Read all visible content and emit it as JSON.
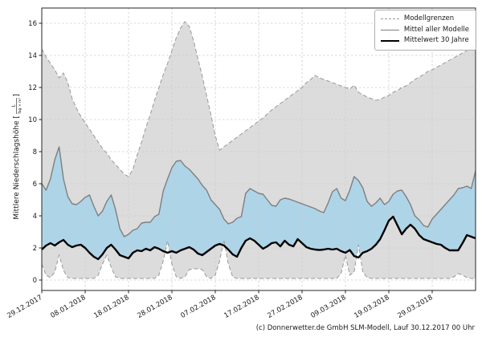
{
  "figure": {
    "footer": "(c) Donnerwetter.de GmbH SLM-Modell, Lauf 30.12.2017 00 Uhr"
  },
  "chart_data": {
    "type": "line",
    "title": "",
    "ylabel_prefix": "Mittlere Niederschlagshöhe [",
    "ylabel_unit_numerator": "L",
    "ylabel_unit_denominator": "Tag × m²",
    "ylabel_close_bracket": "]",
    "grid": true,
    "legend_position": "upper right",
    "ylim": [
      -0.7,
      16.95
    ],
    "xlim_days": [
      0,
      100
    ],
    "y_ticks": [
      0,
      2,
      4,
      6,
      8,
      10,
      12,
      14,
      16
    ],
    "x_tick_days": [
      0,
      10,
      20,
      30,
      40,
      50,
      60,
      70,
      80,
      90
    ],
    "x_tick_labels": [
      "29.12.2017",
      "08.01.2018",
      "18.01.2018",
      "28.01.2018",
      "07.02.2018",
      "17.02.2018",
      "27.02.2018",
      "09.03.2018",
      "19.03.2018",
      "29.03.2018"
    ],
    "legend": {
      "entries": [
        {
          "label": "Modellgrenzen",
          "style": "dashed-gray"
        },
        {
          "label": "Mittel aller Modelle",
          "style": "solid-gray"
        },
        {
          "label": "Mittelwert 30 Jahre",
          "style": "thick-black"
        }
      ]
    },
    "colors": {
      "band_fill": "#dcdcdc",
      "blue_fill": "#aed4e8",
      "bound_line": "#999999",
      "mean_line": "#7f7f7f",
      "mean30_line": "#000000",
      "grid": "#cccccc",
      "spine": "#262626",
      "text": "#1a1a1a"
    },
    "series": [
      {
        "name": "Modellgrenze oben",
        "style": "dashed",
        "values": [
          14.4,
          13.9,
          13.5,
          13.1,
          12.6,
          12.9,
          12.3,
          11.3,
          10.7,
          10.2,
          9.8,
          9.4,
          9.0,
          8.6,
          8.2,
          7.9,
          7.5,
          7.2,
          6.9,
          6.6,
          6.45,
          6.9,
          7.8,
          8.6,
          9.5,
          10.3,
          11.2,
          12.0,
          12.8,
          13.5,
          14.3,
          15.1,
          15.7,
          16.1,
          15.8,
          14.9,
          13.8,
          12.7,
          11.5,
          10.3,
          9.0,
          8.1,
          8.3,
          8.5,
          8.7,
          8.9,
          9.1,
          9.3,
          9.5,
          9.7,
          9.9,
          10.1,
          10.35,
          10.6,
          10.8,
          11.0,
          11.2,
          11.4,
          11.6,
          11.8,
          12.0,
          12.3,
          12.5,
          12.75,
          12.6,
          12.5,
          12.4,
          12.3,
          12.2,
          12.1,
          12.0,
          11.9,
          12.15,
          11.7,
          11.55,
          11.4,
          11.3,
          11.2,
          11.25,
          11.4,
          11.5,
          11.7,
          11.8,
          12.0,
          12.1,
          12.3,
          12.5,
          12.65,
          12.8,
          13.0,
          13.1,
          13.25,
          13.4,
          13.55,
          13.7,
          13.85,
          14.0,
          14.15,
          14.3,
          14.45,
          14.6
        ]
      },
      {
        "name": "Modellgrenze unten",
        "style": "dashed",
        "values": [
          1.0,
          0.3,
          0.15,
          0.5,
          1.55,
          0.6,
          0.15,
          0.1,
          0.1,
          0.1,
          0.1,
          0.1,
          0.1,
          0.3,
          1.0,
          1.55,
          0.8,
          0.2,
          0.1,
          0.1,
          0.1,
          0.1,
          0.1,
          0.1,
          0.1,
          0.1,
          0.1,
          0.3,
          1.2,
          2.45,
          1.0,
          0.2,
          0.1,
          0.2,
          0.65,
          0.7,
          0.7,
          0.65,
          0.2,
          0.1,
          0.3,
          1.2,
          2.5,
          1.0,
          0.2,
          0.1,
          0.1,
          0.1,
          0.1,
          0.1,
          0.1,
          0.1,
          0.1,
          0.1,
          0.1,
          0.1,
          0.1,
          0.1,
          0.1,
          0.1,
          0.1,
          0.1,
          0.1,
          0.1,
          0.1,
          0.1,
          0.1,
          0.1,
          0.1,
          0.4,
          1.55,
          0.3,
          0.5,
          2.2,
          0.5,
          0.15,
          0.1,
          0.1,
          0.1,
          0.1,
          0.1,
          0.1,
          0.1,
          0.1,
          0.1,
          0.1,
          0.1,
          0.1,
          0.1,
          0.1,
          0.1,
          0.1,
          0.1,
          0.1,
          0.1,
          0.2,
          0.4,
          0.3,
          0.15,
          0.1,
          0.1
        ]
      },
      {
        "name": "Mittel aller Modelle",
        "style": "solid-gray",
        "values": [
          6.0,
          5.6,
          6.3,
          7.5,
          8.3,
          6.3,
          5.2,
          4.75,
          4.7,
          4.9,
          5.15,
          5.3,
          4.6,
          4.0,
          4.3,
          4.9,
          5.3,
          4.4,
          3.2,
          2.7,
          2.85,
          3.1,
          3.2,
          3.55,
          3.6,
          3.6,
          3.95,
          4.1,
          5.55,
          6.3,
          7.0,
          7.4,
          7.45,
          7.1,
          6.9,
          6.6,
          6.3,
          5.9,
          5.6,
          5.0,
          4.7,
          4.4,
          3.8,
          3.5,
          3.6,
          3.85,
          3.95,
          5.4,
          5.7,
          5.55,
          5.4,
          5.35,
          5.0,
          4.65,
          4.6,
          5.0,
          5.1,
          5.05,
          4.95,
          4.85,
          4.75,
          4.65,
          4.55,
          4.45,
          4.3,
          4.2,
          4.8,
          5.5,
          5.7,
          5.1,
          4.95,
          5.6,
          6.45,
          6.2,
          5.75,
          4.9,
          4.6,
          4.8,
          5.1,
          4.7,
          4.9,
          5.35,
          5.55,
          5.6,
          5.2,
          4.7,
          4.0,
          3.75,
          3.4,
          3.3,
          3.8,
          4.1,
          4.4,
          4.7,
          5.0,
          5.3,
          5.7,
          5.75,
          5.85,
          5.7,
          6.8
        ]
      },
      {
        "name": "Mittelwert 30 Jahre",
        "style": "thick-black",
        "values": [
          1.9,
          2.15,
          2.3,
          2.15,
          2.35,
          2.5,
          2.2,
          2.05,
          2.15,
          2.2,
          2.0,
          1.7,
          1.45,
          1.3,
          1.6,
          2.0,
          2.2,
          1.9,
          1.55,
          1.45,
          1.35,
          1.7,
          1.85,
          1.8,
          1.95,
          1.85,
          2.05,
          1.95,
          1.8,
          1.7,
          1.8,
          1.7,
          1.85,
          1.95,
          2.05,
          1.9,
          1.65,
          1.55,
          1.75,
          1.95,
          2.15,
          2.25,
          2.15,
          1.9,
          1.6,
          1.45,
          2.0,
          2.45,
          2.6,
          2.45,
          2.2,
          1.95,
          2.1,
          2.3,
          2.35,
          2.1,
          2.45,
          2.2,
          2.1,
          2.55,
          2.3,
          2.05,
          1.95,
          1.9,
          1.87,
          1.9,
          1.95,
          1.9,
          1.95,
          1.8,
          1.7,
          1.87,
          1.5,
          1.4,
          1.7,
          1.8,
          1.95,
          2.2,
          2.55,
          3.1,
          3.7,
          3.95,
          3.4,
          2.85,
          3.2,
          3.45,
          3.2,
          2.8,
          2.55,
          2.45,
          2.35,
          2.25,
          2.2,
          2.0,
          1.85,
          1.85,
          1.85,
          2.3,
          2.8,
          2.7,
          2.6
        ]
      }
    ]
  }
}
